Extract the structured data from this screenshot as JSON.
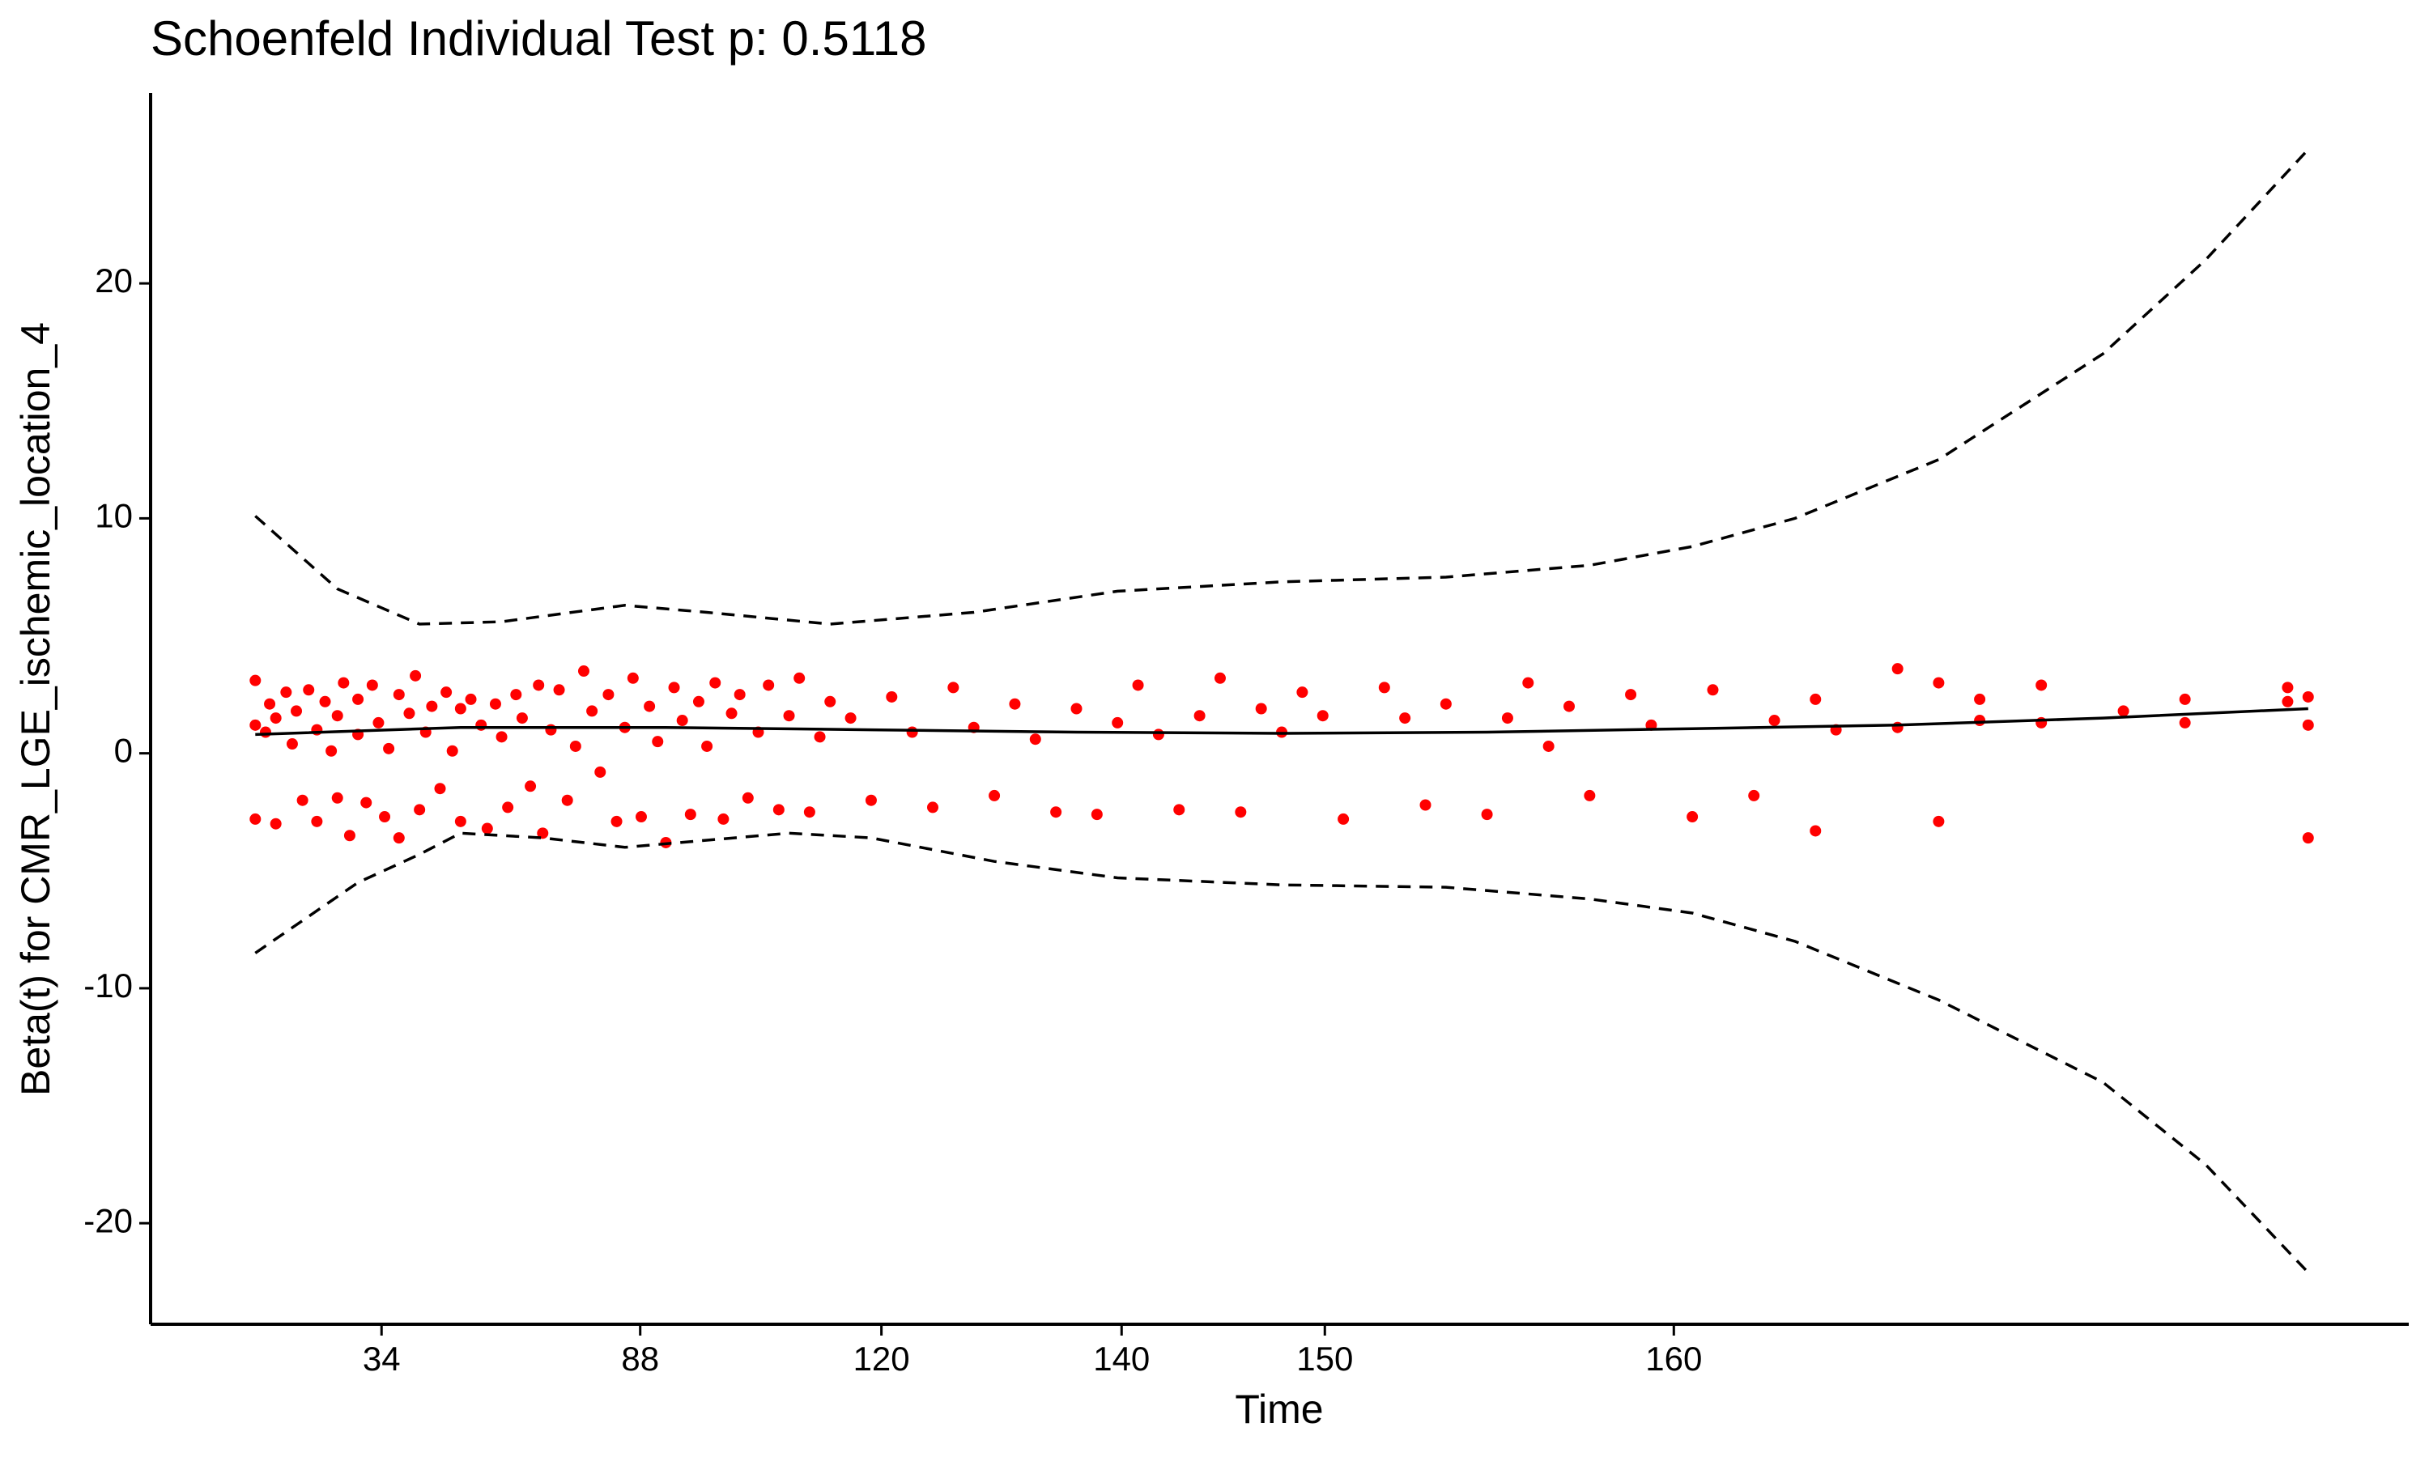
{
  "chart_data": {
    "type": "scatter",
    "title": "Schoenfeld Individual Test p: 0.5118",
    "x_label": "Time",
    "y_label": "Beta(t) for CMR_LGE_ischemic_location_4",
    "xlim": [
      -5.1,
      104.9
    ],
    "ylim": [
      -24.3,
      28.1
    ],
    "xticks": [
      {
        "value": 6.15,
        "label": "34"
      },
      {
        "value": 18.75,
        "label": "88"
      },
      {
        "value": 30.5,
        "label": "120"
      },
      {
        "value": 42.2,
        "label": "140"
      },
      {
        "value": 52.1,
        "label": "150"
      },
      {
        "value": 69.1,
        "label": "160"
      }
    ],
    "yticks": [
      20,
      10,
      0,
      -10,
      -20
    ],
    "grid": false,
    "series": [
      {
        "type": "scatter",
        "color": "#ff0000",
        "x": [
          0,
          0,
          0,
          0.5,
          0.7,
          1,
          1,
          1.5,
          1.8,
          2,
          2.3,
          2.6,
          3,
          3,
          3.4,
          3.7,
          4,
          4,
          4.3,
          4.6,
          5,
          5,
          5.4,
          5.7,
          6,
          6.3,
          6.5,
          7,
          7,
          7.5,
          7.8,
          8,
          8.3,
          8.6,
          9,
          9.3,
          9.6,
          10,
          10,
          10.5,
          11,
          11.3,
          11.7,
          12,
          12.3,
          12.7,
          13,
          13.4,
          13.8,
          14,
          14.4,
          14.8,
          15.2,
          15.6,
          16,
          16.4,
          16.8,
          17.2,
          17.6,
          18,
          18.4,
          18.8,
          19.2,
          19.6,
          20,
          20.4,
          20.8,
          21.2,
          21.6,
          22,
          22.4,
          22.8,
          23.2,
          23.6,
          24,
          24.5,
          25,
          25.5,
          26,
          26.5,
          27,
          27.5,
          28,
          29,
          30,
          31,
          32,
          33,
          34,
          35,
          36,
          37,
          38,
          39,
          40,
          41,
          42,
          43,
          44,
          45,
          46,
          47,
          48,
          49,
          50,
          51,
          52,
          53,
          55,
          56,
          57,
          58,
          60,
          61,
          62,
          63,
          64,
          65,
          67,
          68,
          70,
          71,
          73,
          74,
          76,
          76,
          77,
          80,
          80,
          82,
          82,
          84,
          84,
          87,
          87,
          91,
          94,
          94,
          99,
          99,
          100,
          100,
          100
        ],
        "values": [
          3.1,
          1.2,
          -2.8,
          0.9,
          2.1,
          1.5,
          -3.0,
          2.6,
          0.4,
          1.8,
          -2.0,
          2.7,
          1.0,
          -2.9,
          2.2,
          0.1,
          1.6,
          -1.9,
          3.0,
          -3.5,
          2.3,
          0.8,
          -2.1,
          2.9,
          1.3,
          -2.7,
          0.2,
          2.5,
          -3.6,
          1.7,
          3.3,
          -2.4,
          0.9,
          2.0,
          -1.5,
          2.6,
          0.1,
          1.9,
          -2.9,
          2.3,
          1.2,
          -3.2,
          2.1,
          0.7,
          -2.3,
          2.5,
          1.5,
          -1.4,
          2.9,
          -3.4,
          1.0,
          2.7,
          -2.0,
          0.3,
          3.5,
          1.8,
          -0.8,
          2.5,
          -2.9,
          1.1,
          3.2,
          -2.7,
          2.0,
          0.5,
          -3.8,
          2.8,
          1.4,
          -2.6,
          2.2,
          0.3,
          3.0,
          -2.8,
          1.7,
          2.5,
          -1.9,
          0.9,
          2.9,
          -2.4,
          1.6,
          3.2,
          -2.5,
          0.7,
          2.2,
          1.5,
          -2.0,
          2.4,
          0.9,
          -2.3,
          2.8,
          1.1,
          -1.8,
          2.1,
          0.6,
          -2.5,
          1.9,
          -2.6,
          1.3,
          2.9,
          0.8,
          -2.4,
          1.6,
          3.2,
          -2.5,
          1.9,
          0.9,
          2.6,
          1.6,
          -2.8,
          2.8,
          1.5,
          -2.2,
          2.1,
          -2.6,
          1.5,
          3.0,
          0.3,
          2.0,
          -1.8,
          2.5,
          1.2,
          -2.7,
          2.7,
          -1.8,
          1.4,
          2.3,
          -3.3,
          1.0,
          3.6,
          1.1,
          3.0,
          -2.9,
          2.3,
          1.4,
          2.9,
          1.3,
          1.8,
          2.3,
          1.3,
          2.8,
          2.2,
          2.4,
          1.2,
          -3.6
        ]
      },
      {
        "type": "line",
        "color": "#000000",
        "dashed": false,
        "x": [
          0,
          10,
          20,
          30,
          40,
          50,
          60,
          70,
          80,
          90,
          100
        ],
        "values": [
          0.8,
          1.1,
          1.1,
          1.0,
          0.9,
          0.85,
          0.9,
          1.05,
          1.2,
          1.5,
          1.9
        ]
      },
      {
        "type": "line",
        "color": "#000000",
        "dashed": true,
        "x": [
          0,
          4,
          8,
          12,
          18,
          22,
          28,
          35,
          42,
          50,
          58,
          65,
          70,
          75,
          82,
          90,
          95,
          100
        ],
        "values": [
          10.1,
          7.0,
          5.5,
          5.6,
          6.3,
          6.0,
          5.5,
          6.0,
          6.9,
          7.3,
          7.5,
          8.0,
          8.8,
          10.0,
          12.5,
          17.0,
          21.0,
          25.7
        ]
      },
      {
        "type": "line",
        "color": "#000000",
        "dashed": true,
        "x": [
          0,
          5,
          8,
          10,
          14,
          18,
          22,
          26,
          30,
          36,
          42,
          50,
          58,
          65,
          70,
          75,
          82,
          90,
          95,
          100
        ],
        "values": [
          -8.5,
          -5.5,
          -4.3,
          -3.4,
          -3.6,
          -4.0,
          -3.7,
          -3.4,
          -3.6,
          -4.6,
          -5.3,
          -5.6,
          -5.7,
          -6.2,
          -6.8,
          -8.0,
          -10.5,
          -14.0,
          -17.5,
          -22.1
        ]
      }
    ]
  }
}
